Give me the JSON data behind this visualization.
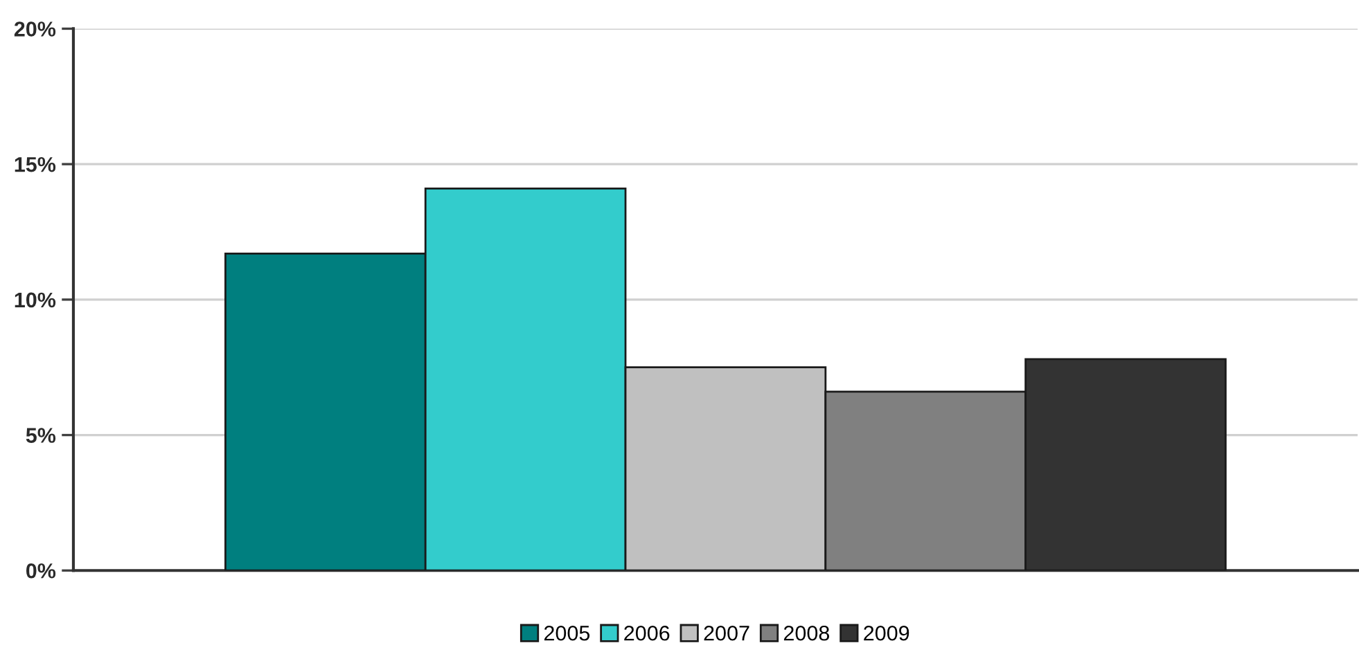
{
  "chart_data": {
    "type": "bar",
    "categories": [
      null
    ],
    "series": [
      {
        "name": "2005",
        "color": "#007f7f",
        "values": [
          11.7
        ]
      },
      {
        "name": "2006",
        "color": "#33cccc",
        "values": [
          14.1
        ]
      },
      {
        "name": "2007",
        "color": "#c0c0c0",
        "values": [
          7.5
        ]
      },
      {
        "name": "2008",
        "color": "#808080",
        "values": [
          6.6
        ]
      },
      {
        "name": "2009",
        "color": "#333333",
        "values": [
          7.8
        ]
      }
    ],
    "ylim": [
      0,
      20
    ],
    "yticks": [
      {
        "value": 0,
        "label": "0%"
      },
      {
        "value": 5,
        "label": "5%"
      },
      {
        "value": 10,
        "label": "10%"
      },
      {
        "value": 15,
        "label": "15%"
      },
      {
        "value": 20,
        "label": "20%"
      }
    ],
    "grid": "y",
    "legend": "bottom"
  }
}
